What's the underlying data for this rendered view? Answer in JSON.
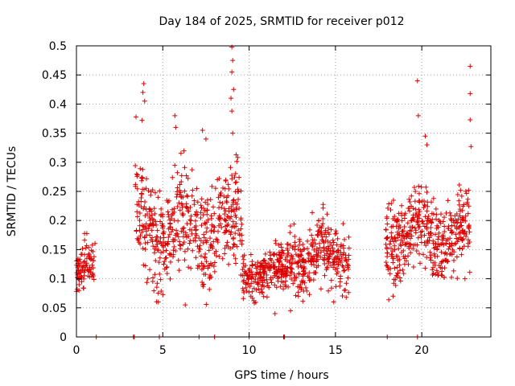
{
  "chart_data": {
    "type": "scatter",
    "title": "Day 184 of 2025, SRMTID for receiver p012",
    "xlabel": "GPS time / hours",
    "ylabel": "SRMTID / TECUs",
    "xlim": [
      0,
      24
    ],
    "ylim": [
      0,
      0.5
    ],
    "x_ticks": [
      0,
      5,
      10,
      15,
      20
    ],
    "x_tick_labels": [
      "0",
      "5",
      "10",
      "15",
      "20"
    ],
    "y_ticks": [
      0,
      0.05,
      0.1,
      0.15,
      0.2,
      0.25,
      0.3,
      0.35,
      0.4,
      0.45,
      0.5
    ],
    "y_tick_labels": [
      "0",
      "0.05",
      "0.1",
      "0.15",
      "0.2",
      "0.25",
      "0.3",
      "0.35",
      "0.4",
      "0.45",
      "0.5"
    ],
    "grid": true,
    "marker": "plus",
    "color": "#dd0000",
    "series": [
      {
        "name": "SRMTID",
        "segments": [
          {
            "x": [
              0.0,
              1.1
            ],
            "base": 0.11,
            "spread": 0.03,
            "n": 90
          },
          {
            "x": [
              3.4,
              9.6
            ],
            "base": 0.19,
            "spread": 0.06,
            "n": 520
          },
          {
            "x": [
              9.6,
              12.2
            ],
            "base": 0.11,
            "spread": 0.025,
            "n": 230
          },
          {
            "x": [
              12.2,
              15.8
            ],
            "base": 0.14,
            "spread": 0.04,
            "n": 300
          },
          {
            "x": [
              17.9,
              20.4
            ],
            "base": 0.18,
            "spread": 0.05,
            "n": 230
          },
          {
            "x": [
              20.4,
              22.8
            ],
            "base": 0.17,
            "spread": 0.045,
            "n": 210
          }
        ],
        "peaks": [
          {
            "x": 3.45,
            "y": 0.378
          },
          {
            "x": 3.9,
            "y": 0.435
          },
          {
            "x": 3.85,
            "y": 0.42
          },
          {
            "x": 3.95,
            "y": 0.405
          },
          {
            "x": 3.8,
            "y": 0.372
          },
          {
            "x": 5.7,
            "y": 0.38
          },
          {
            "x": 5.75,
            "y": 0.36
          },
          {
            "x": 7.3,
            "y": 0.355
          },
          {
            "x": 7.5,
            "y": 0.34
          },
          {
            "x": 9.0,
            "y": 0.498
          },
          {
            "x": 9.05,
            "y": 0.475
          },
          {
            "x": 9.0,
            "y": 0.455
          },
          {
            "x": 9.1,
            "y": 0.425
          },
          {
            "x": 8.95,
            "y": 0.41
          },
          {
            "x": 9.0,
            "y": 0.388
          },
          {
            "x": 9.05,
            "y": 0.35
          },
          {
            "x": 19.75,
            "y": 0.44
          },
          {
            "x": 19.8,
            "y": 0.38
          },
          {
            "x": 20.2,
            "y": 0.345
          },
          {
            "x": 20.3,
            "y": 0.33
          },
          {
            "x": 22.8,
            "y": 0.465
          },
          {
            "x": 22.8,
            "y": 0.418
          },
          {
            "x": 22.8,
            "y": 0.373
          },
          {
            "x": 22.85,
            "y": 0.327
          },
          {
            "x": 22.5,
            "y": 0.1
          },
          {
            "x": 11.5,
            "y": 0.04
          },
          {
            "x": 12.4,
            "y": 0.045
          },
          {
            "x": 6.3,
            "y": 0.055
          },
          {
            "x": 14.9,
            "y": 0.06
          }
        ],
        "zero_marks": [
          1.15,
          3.3,
          3.35,
          4.8,
          7.1,
          8.0,
          10.0,
          12.0,
          12.05,
          18.0,
          19.75
        ]
      }
    ]
  }
}
